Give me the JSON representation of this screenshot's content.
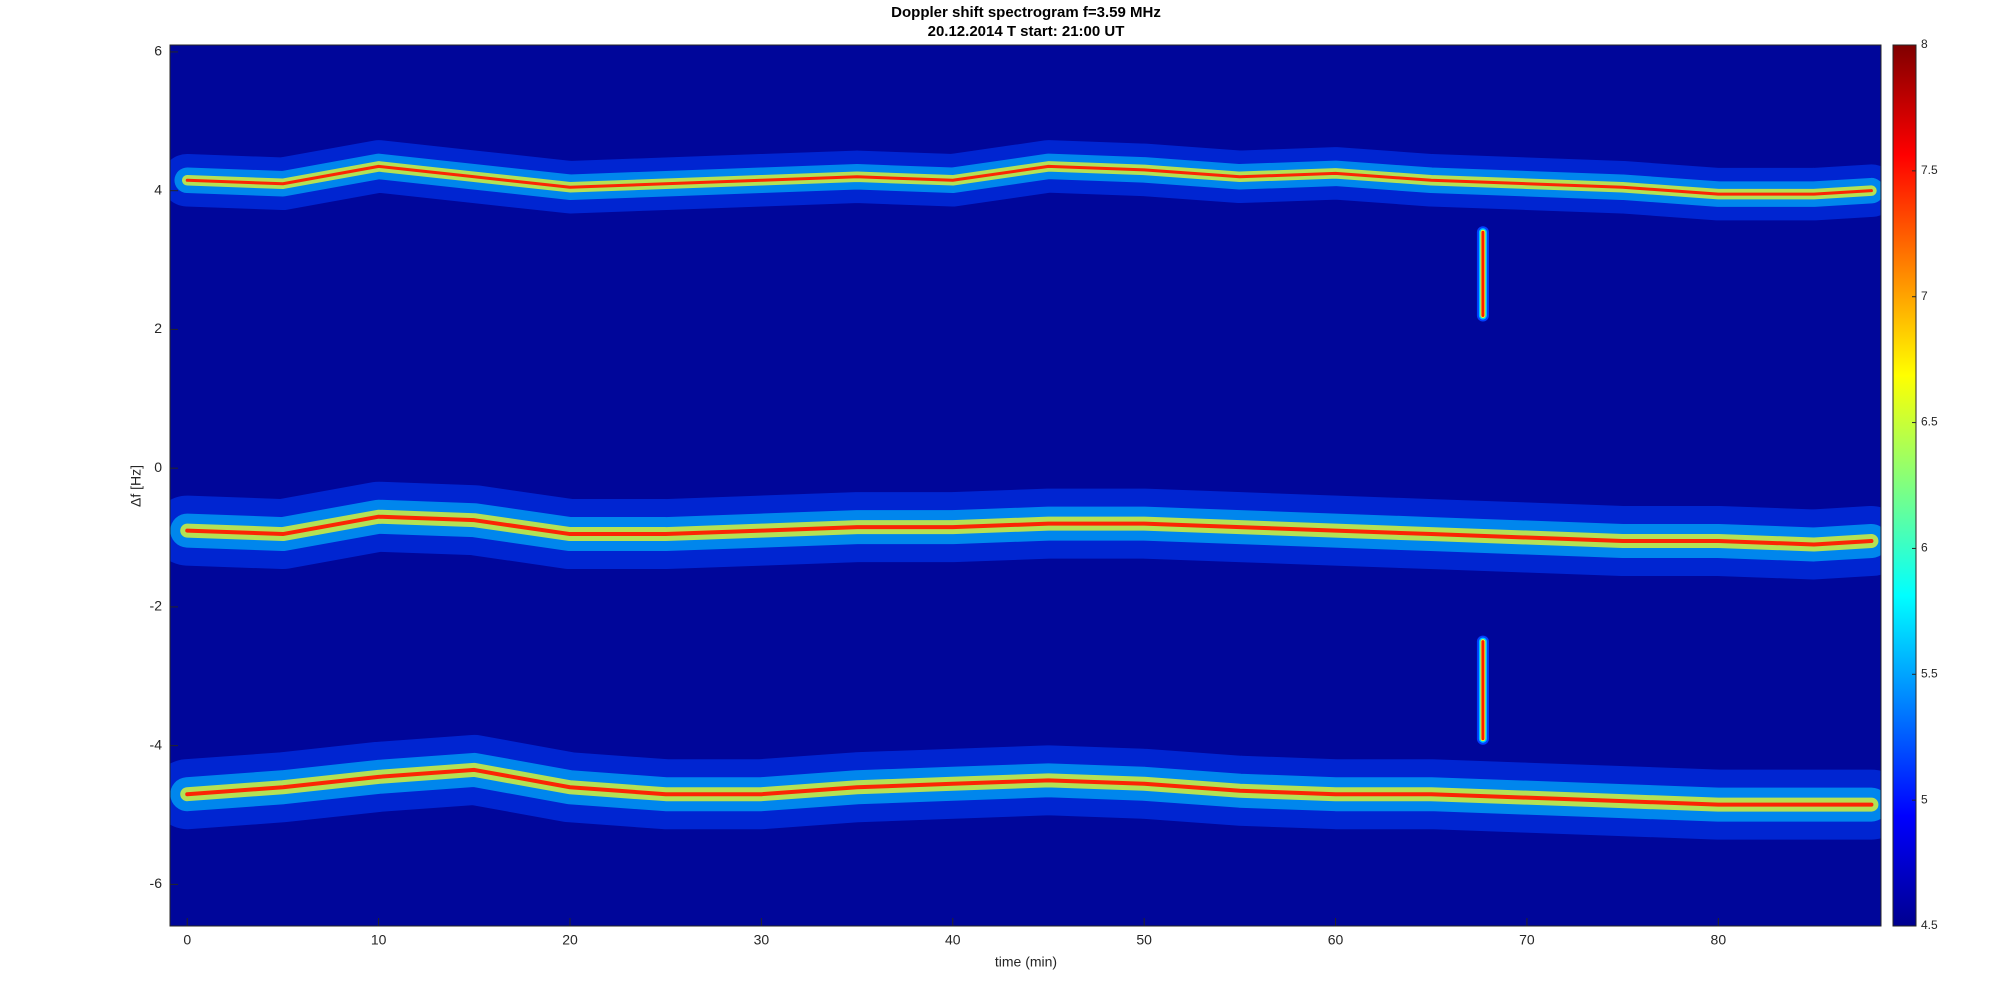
{
  "chart_data": {
    "type": "spectrogram",
    "title": "Doppler shift spectrogram f=3.59 MHz",
    "subtitle": "20.12.2014   T start: 21:00 UT",
    "xlabel": "time (min)",
    "ylabel": "Δf [Hz]",
    "xlim": [
      -0.9,
      88.5
    ],
    "ylim": [
      -6.6,
      6.1
    ],
    "xticks": [
      0,
      10,
      20,
      30,
      40,
      50,
      60,
      70,
      80
    ],
    "yticks": [
      -6,
      -4,
      -2,
      0,
      2,
      4,
      6
    ],
    "background": "#00069a",
    "ridge_colors": [
      "#0040ff",
      "#00c8ff",
      "#f0ff20",
      "#ff1a00"
    ],
    "x": [
      0,
      5,
      10,
      15,
      20,
      25,
      30,
      35,
      40,
      45,
      50,
      55,
      60,
      65,
      70,
      75,
      80,
      85,
      88
    ],
    "series": [
      {
        "values": [
          4.15,
          4.1,
          4.35,
          4.2,
          4.05,
          4.1,
          4.15,
          4.2,
          4.15,
          4.35,
          4.3,
          4.2,
          4.25,
          4.15,
          4.1,
          4.05,
          3.95,
          3.95,
          4.0
        ]
      },
      {
        "values": [
          -0.9,
          -0.95,
          -0.7,
          -0.75,
          -0.95,
          -0.95,
          -0.9,
          -0.85,
          -0.85,
          -0.8,
          -0.8,
          -0.85,
          -0.9,
          -0.95,
          -1.0,
          -1.05,
          -1.05,
          -1.1,
          -1.05
        ]
      },
      {
        "values": [
          -4.7,
          -4.6,
          -4.45,
          -4.35,
          -4.6,
          -4.7,
          -4.7,
          -4.6,
          -4.55,
          -4.5,
          -4.55,
          -4.65,
          -4.7,
          -4.7,
          -4.75,
          -4.8,
          -4.85,
          -4.85,
          -4.85
        ]
      }
    ],
    "spikes": [
      {
        "x": 67.7,
        "y": [
          2.2,
          3.4
        ]
      },
      {
        "x": 67.7,
        "y": [
          -3.9,
          -2.5
        ]
      }
    ],
    "colorbar": {
      "lim": [
        4.5,
        8
      ],
      "ticks": [
        4.5,
        5,
        5.5,
        6,
        6.5,
        7,
        7.5,
        8
      ],
      "colormap": [
        "#00008f",
        "#0000ff",
        "#0080ff",
        "#00ffff",
        "#80ff80",
        "#ffff00",
        "#ff8000",
        "#ff0000",
        "#800000"
      ]
    }
  }
}
